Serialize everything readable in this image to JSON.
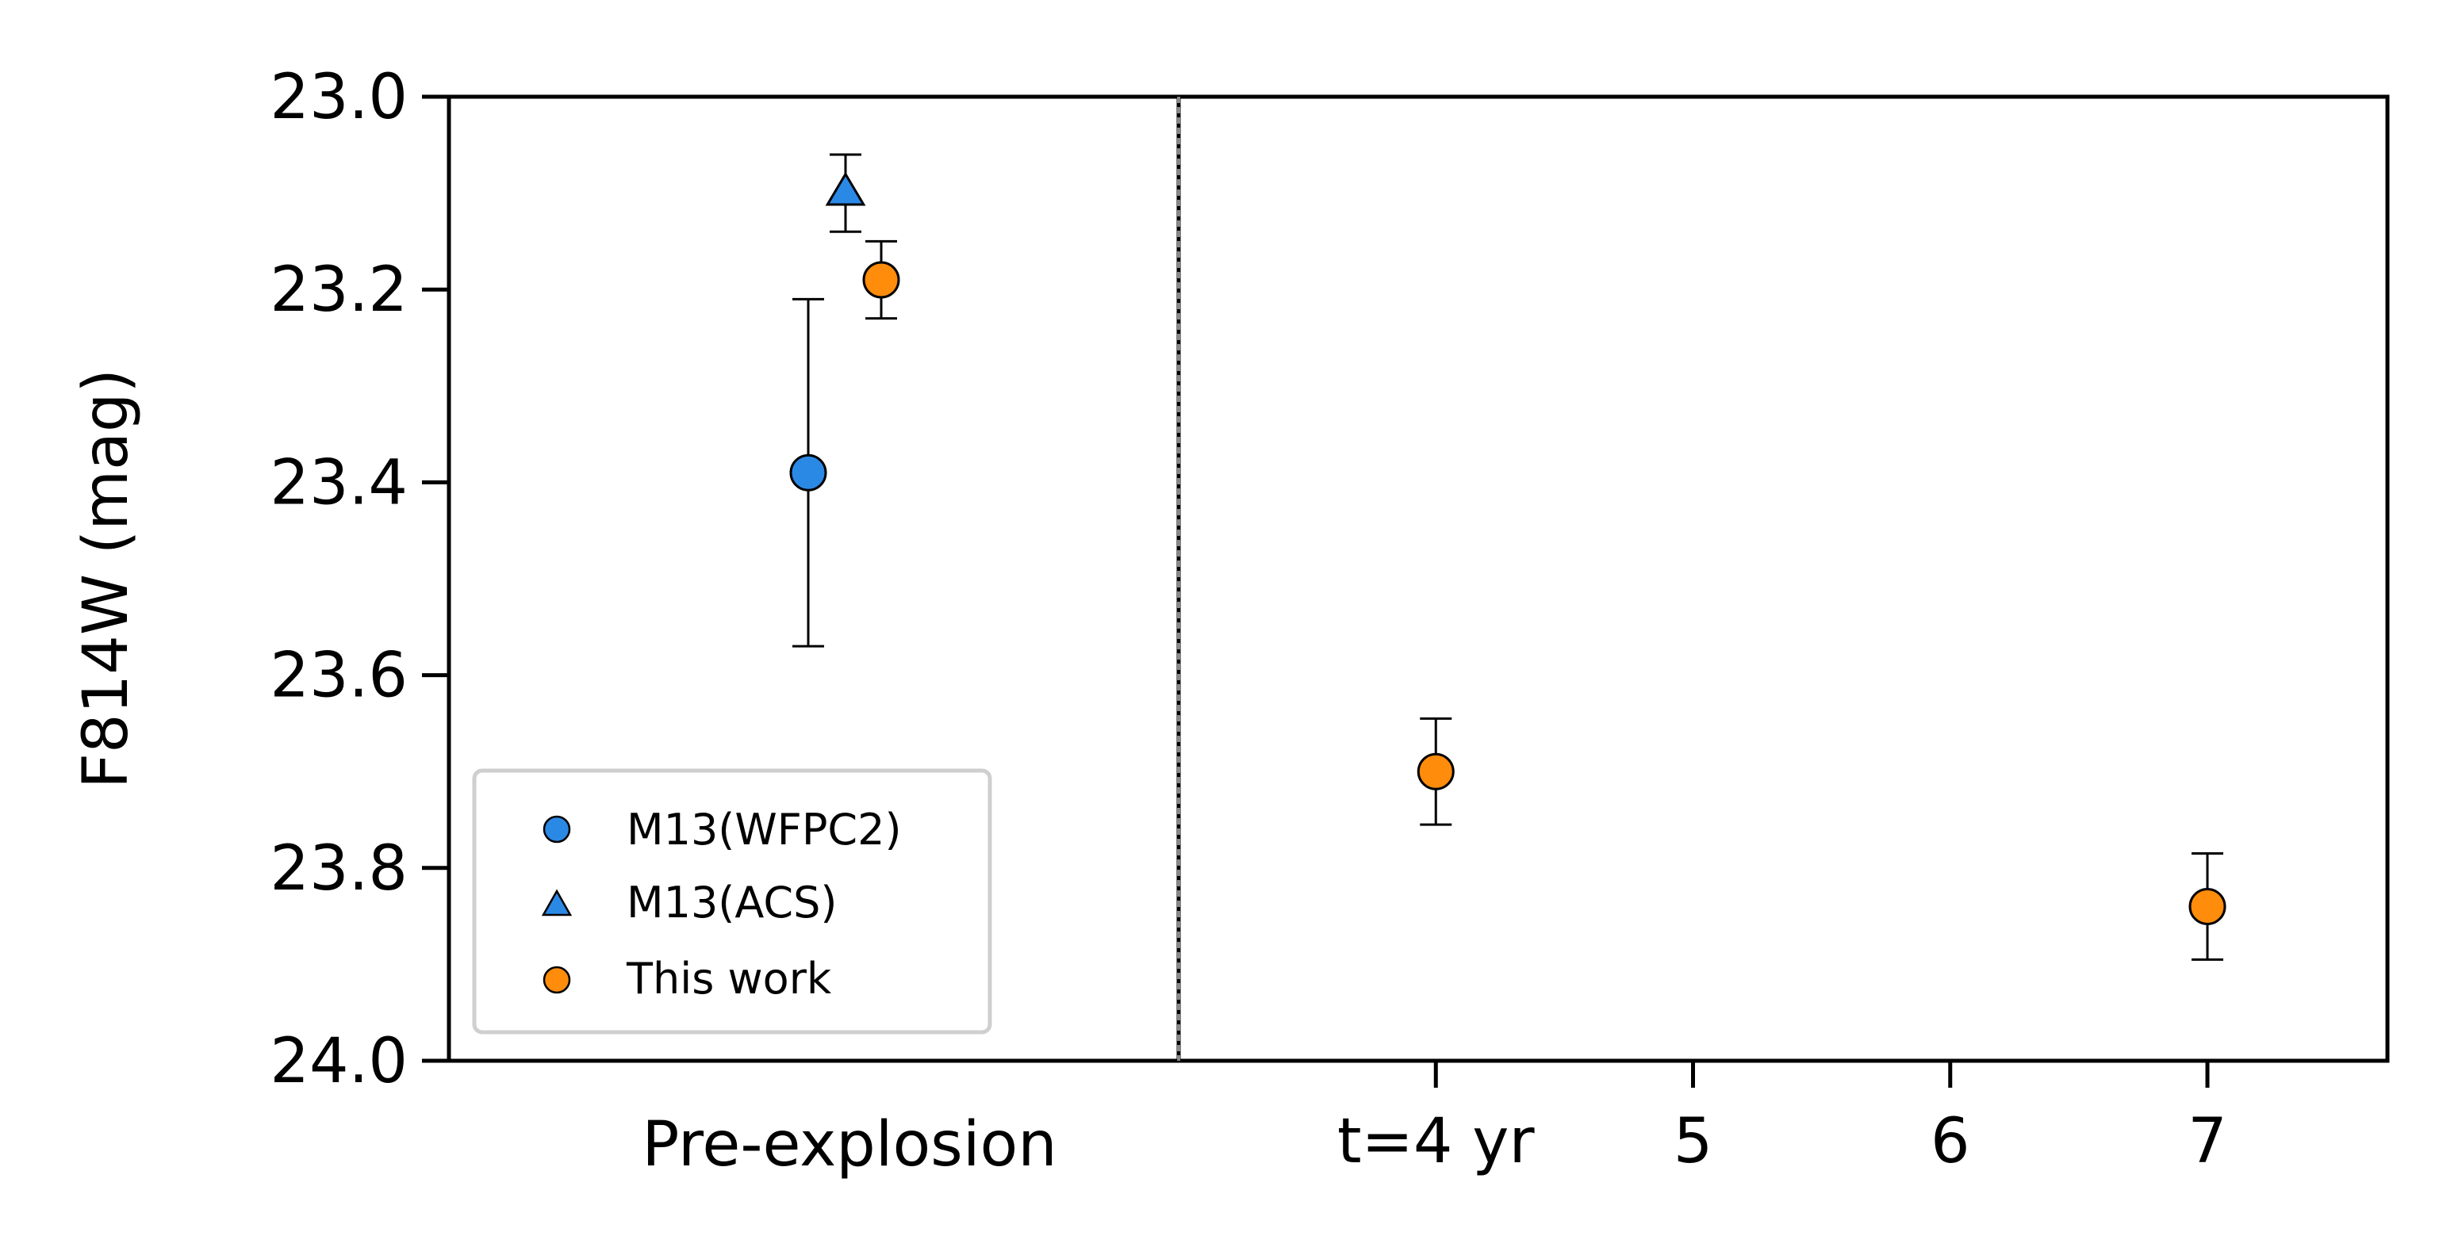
{
  "chart_data": {
    "type": "scatter",
    "title": "",
    "ylabel": "F814W (mag)",
    "xlabel": "",
    "ylim": [
      23.0,
      24.0
    ],
    "y_inverted": true,
    "yticks": [
      "23.0",
      "23.2",
      "23.4",
      "23.6",
      "23.8",
      "24.0"
    ],
    "y_tick_values": [
      23.0,
      23.2,
      23.4,
      23.6,
      23.8,
      24.0
    ],
    "panels": {
      "left": {
        "label": "Pre-explosion"
      },
      "right": {
        "xlim": [
          3.0,
          7.7
        ],
        "xticks": [
          "t=4 yr",
          "5",
          "6",
          "7"
        ],
        "x_tick_values": [
          4,
          5,
          6,
          7
        ]
      }
    },
    "series": [
      {
        "name": "M13(WFPC2)",
        "marker": "circle",
        "color": "#2b89e6",
        "points": [
          {
            "x": "Pre-explosion",
            "y": 23.39,
            "yerr_low": 0.18,
            "yerr_high": 0.18
          }
        ]
      },
      {
        "name": "M13(ACS)",
        "marker": "triangle",
        "color": "#2b89e6",
        "points": [
          {
            "x": "Pre-explosion",
            "y": 23.1,
            "yerr_low": 0.04,
            "yerr_high": 0.04
          }
        ]
      },
      {
        "name": "This work",
        "marker": "circle",
        "color": "#ff8c0a",
        "points": [
          {
            "x": "Pre-explosion",
            "y": 23.19,
            "yerr_low": 0.04,
            "yerr_high": 0.04
          },
          {
            "x": 4,
            "y": 23.7,
            "yerr_low": 0.055,
            "yerr_high": 0.055
          },
          {
            "x": 7,
            "y": 23.84,
            "yerr_low": 0.055,
            "yerr_high": 0.055
          }
        ]
      }
    ],
    "legend": {
      "location": "lower-left",
      "entries": [
        "M13(WFPC2)",
        "M13(ACS)",
        "This work"
      ]
    },
    "grid": false
  }
}
